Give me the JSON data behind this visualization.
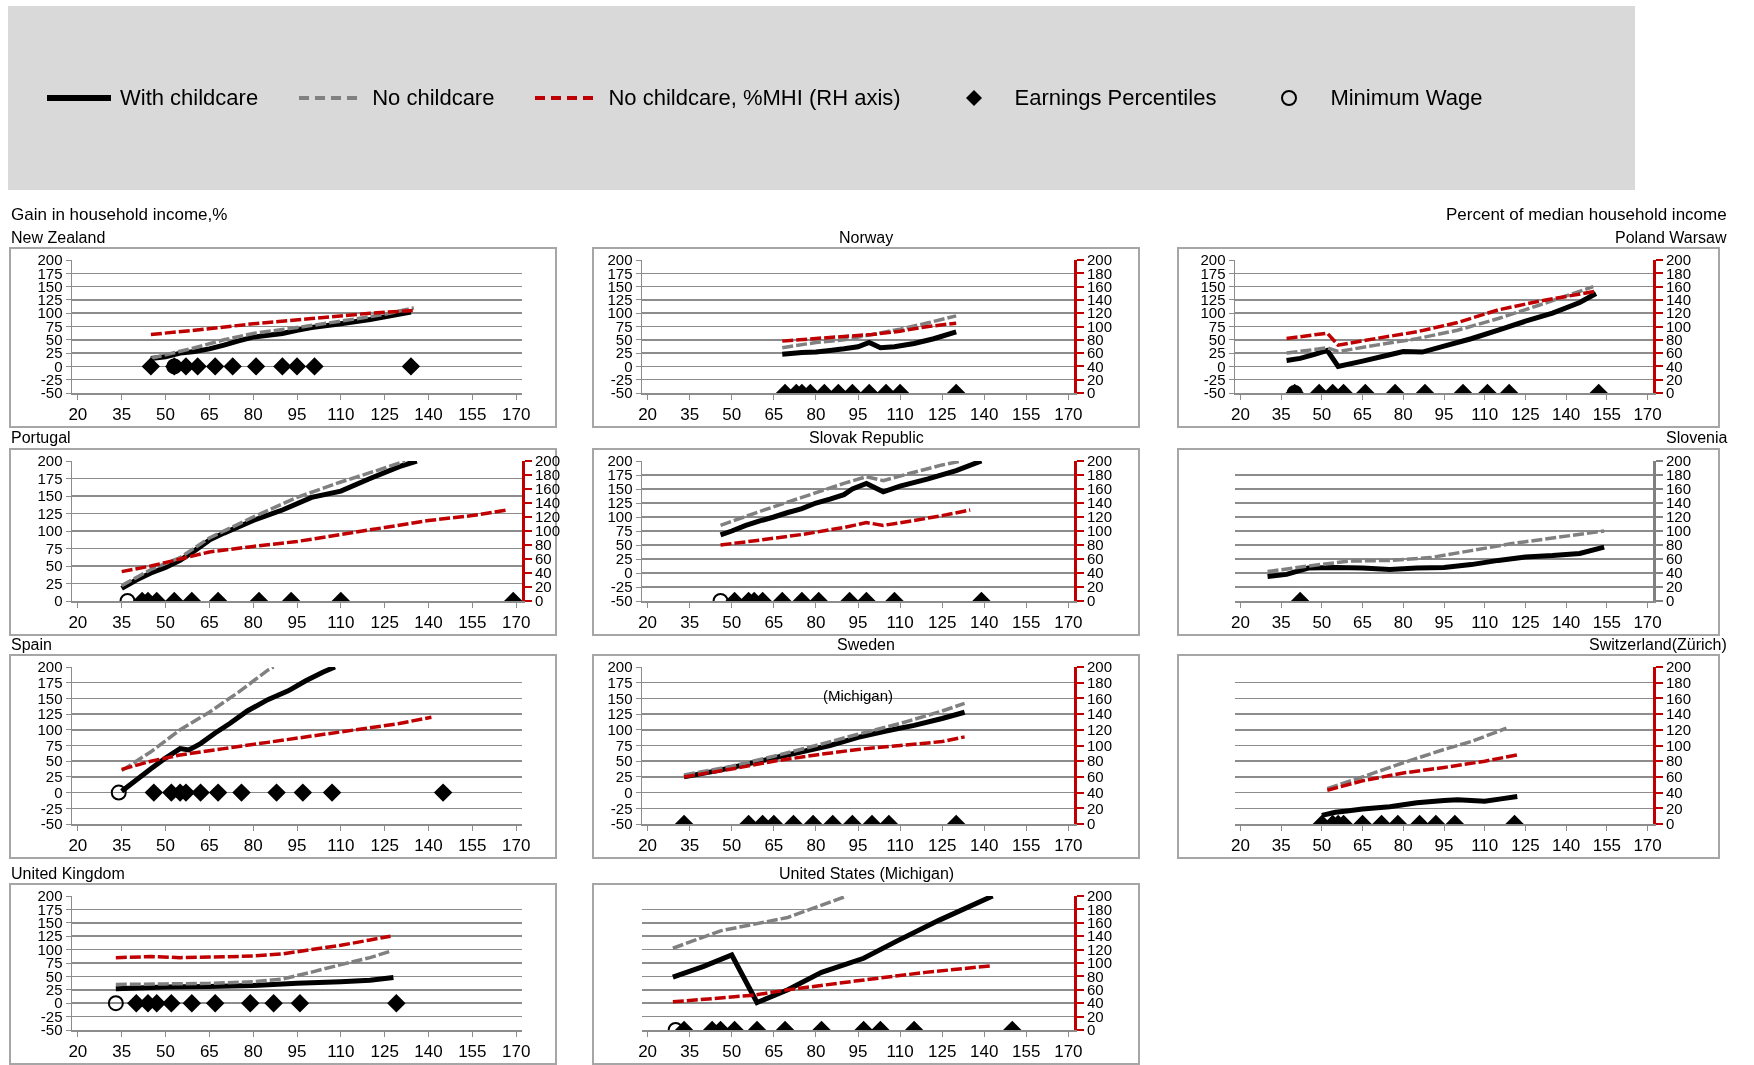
{
  "chart_data": [
    {
      "type": "line",
      "title": "New Zealand",
      "ylabel": "Gain in household income,%",
      "legend": "top",
      "grid": "y",
      "xlim": [
        18,
        172
      ],
      "xticks": [
        20,
        35,
        50,
        65,
        80,
        95,
        110,
        125,
        140,
        155,
        170
      ],
      "ylim": [
        -50,
        200
      ],
      "yticks": [
        -50,
        -25,
        0,
        25,
        50,
        75,
        100,
        125,
        150,
        175,
        200
      ],
      "series": [
        {
          "name": "With childcare",
          "color": "#000000",
          "line_style": "solid",
          "x": [
            45,
            50,
            55,
            60,
            65,
            70,
            75,
            80,
            90,
            95,
            100,
            110,
            120,
            134
          ],
          "values": [
            15,
            18,
            25,
            28,
            33,
            40,
            48,
            55,
            62,
            68,
            73,
            80,
            88,
            102
          ]
        },
        {
          "name": "No childcare",
          "color": "#808080",
          "line_style": "dashed",
          "x": [
            45,
            60,
            70,
            80,
            95,
            110,
            125,
            135
          ],
          "values": [
            15,
            35,
            50,
            62,
            73,
            85,
            98,
            110
          ]
        },
        {
          "name": "No childcare, %MHI (RH axis)",
          "color": "#c00000",
          "line_style": "dashed",
          "x": [
            45,
            60,
            80,
            100,
            120,
            135
          ],
          "values": [
            60,
            68,
            80,
            90,
            100,
            105
          ]
        },
        {
          "name": "Earnings Percentiles",
          "type": "scatter",
          "marker": "diamond",
          "color": "#000000",
          "x": [
            45,
            53,
            57,
            61,
            67,
            73,
            81,
            90,
            95,
            101,
            134
          ],
          "values": [
            0,
            0,
            0,
            0,
            0,
            0,
            0,
            0,
            0,
            0,
            0
          ]
        },
        {
          "name": "Minimum Wage",
          "type": "scatter",
          "marker": "circle",
          "color": "#000000",
          "x": [
            53
          ],
          "values": [
            0
          ]
        }
      ]
    },
    {
      "type": "line",
      "title": "Norway",
      "grid": "y",
      "xlim": [
        18,
        172
      ],
      "xticks": [
        20,
        35,
        50,
        65,
        80,
        95,
        110,
        125,
        140,
        155,
        170
      ],
      "ylim": [
        -50,
        200
      ],
      "yticks": [
        -50,
        -25,
        0,
        25,
        50,
        75,
        100,
        125,
        150,
        175,
        200
      ],
      "y2lim": [
        0,
        200
      ],
      "y2ticks": [
        0,
        20,
        40,
        60,
        80,
        100,
        120,
        140,
        160,
        180,
        200
      ],
      "series": [
        {
          "type": "line",
          "color": "#000000",
          "line_style": "solid",
          "x": [
            68,
            75,
            80,
            85,
            90,
            95,
            99,
            103,
            108,
            115,
            122,
            130
          ],
          "values": [
            23,
            26,
            27,
            30,
            33,
            37,
            45,
            35,
            37,
            43,
            52,
            65
          ]
        },
        {
          "type": "line",
          "color": "#808080",
          "line_style": "dashed",
          "x": [
            68,
            80,
            90,
            100,
            110,
            120,
            130
          ],
          "values": [
            35,
            45,
            50,
            60,
            70,
            82,
            95
          ]
        },
        {
          "type": "line",
          "axis": "y2",
          "color": "#c00000",
          "line_style": "dashed",
          "x": [
            68,
            80,
            90,
            100,
            110,
            120,
            130
          ],
          "values": [
            78,
            82,
            85,
            88,
            93,
            100,
            105
          ]
        },
        {
          "type": "scatter",
          "marker": "diamond",
          "color": "#000000",
          "x": [
            69,
            73,
            75,
            78,
            83,
            88,
            93,
            99,
            105,
            110,
            130
          ],
          "values": [
            -50,
            -50,
            -50,
            -50,
            -50,
            -50,
            -50,
            -50,
            -50,
            -50,
            -50
          ]
        }
      ]
    },
    {
      "type": "line",
      "title": "Poland Warsaw",
      "y2label": "Percent of median household income",
      "grid": "y",
      "xlim": [
        18,
        172
      ],
      "xticks": [
        20,
        35,
        50,
        65,
        80,
        95,
        110,
        125,
        140,
        155,
        170
      ],
      "ylim": [
        -50,
        200
      ],
      "yticks": [
        -50,
        -25,
        0,
        25,
        50,
        75,
        100,
        125,
        150,
        175,
        200
      ],
      "y2lim": [
        0,
        200
      ],
      "y2ticks": [
        0,
        20,
        40,
        60,
        80,
        100,
        120,
        140,
        160,
        180,
        200
      ],
      "series": [
        {
          "type": "line",
          "color": "#000000",
          "line_style": "solid",
          "x": [
            37,
            42,
            47,
            52,
            56,
            65,
            75,
            80,
            87,
            95,
            105,
            115,
            125,
            135,
            145,
            151
          ],
          "values": [
            11,
            15,
            22,
            30,
            0,
            10,
            22,
            28,
            27,
            38,
            52,
            68,
            85,
            100,
            120,
            137
          ]
        },
        {
          "type": "line",
          "color": "#808080",
          "line_style": "dashed",
          "x": [
            37,
            52,
            56,
            70,
            85,
            100,
            115,
            130,
            150
          ],
          "values": [
            25,
            35,
            28,
            40,
            52,
            68,
            90,
            115,
            150
          ]
        },
        {
          "type": "line",
          "axis": "y2",
          "color": "#c00000",
          "line_style": "dashed",
          "x": [
            37,
            52,
            56,
            70,
            85,
            100,
            115,
            130,
            151
          ],
          "values": [
            82,
            90,
            72,
            82,
            92,
            106,
            125,
            138,
            153
          ]
        },
        {
          "type": "scatter",
          "marker": "diamond",
          "color": "#000000",
          "x": [
            40,
            49,
            54,
            58,
            66,
            77,
            88,
            102,
            111,
            119,
            152
          ],
          "values": [
            -50,
            -50,
            -50,
            -50,
            -50,
            -50,
            -50,
            -50,
            -50,
            -50,
            -50
          ]
        },
        {
          "type": "scatter",
          "marker": "circle",
          "color": "#000000",
          "x": [
            40
          ],
          "values": [
            -50
          ]
        }
      ]
    },
    {
      "type": "line",
      "title": "Portugal",
      "grid": "y",
      "xlim": [
        18,
        172
      ],
      "xticks": [
        20,
        35,
        50,
        65,
        80,
        95,
        110,
        125,
        140,
        155,
        170
      ],
      "ylim": [
        0,
        200
      ],
      "yticks": [
        0,
        25,
        50,
        75,
        100,
        125,
        150,
        175,
        200
      ],
      "y2lim": [
        0,
        200
      ],
      "y2ticks": [
        0,
        20,
        40,
        60,
        80,
        100,
        120,
        140,
        160,
        180,
        200
      ],
      "series": [
        {
          "type": "line",
          "color": "#000000",
          "line_style": "solid",
          "x": [
            35,
            40,
            45,
            50,
            55,
            60,
            65,
            70,
            80,
            90,
            100,
            110,
            120,
            130,
            136
          ],
          "values": [
            18,
            30,
            40,
            48,
            58,
            72,
            87,
            97,
            115,
            130,
            148,
            157,
            175,
            192,
            200
          ]
        },
        {
          "type": "line",
          "color": "#808080",
          "line_style": "dashed",
          "x": [
            35,
            45,
            55,
            65,
            80,
            95,
            110,
            125,
            132
          ],
          "values": [
            22,
            45,
            62,
            90,
            120,
            148,
            170,
            190,
            200
          ]
        },
        {
          "type": "line",
          "axis": "y2",
          "color": "#c00000",
          "line_style": "dashed",
          "x": [
            35,
            45,
            55,
            65,
            80,
            95,
            110,
            125,
            140,
            155,
            167
          ],
          "values": [
            42,
            50,
            60,
            70,
            78,
            85,
            95,
            105,
            115,
            122,
            130
          ]
        },
        {
          "type": "scatter",
          "marker": "diamond",
          "color": "#000000",
          "x": [
            42,
            44,
            47,
            53,
            59,
            68,
            82,
            93,
            110,
            169
          ],
          "values": [
            0,
            0,
            0,
            0,
            0,
            0,
            0,
            0,
            0,
            0
          ]
        },
        {
          "type": "scatter",
          "marker": "circle",
          "color": "#000000",
          "x": [
            37
          ],
          "values": [
            0
          ]
        }
      ]
    },
    {
      "type": "line",
      "title": "Slovak Republic",
      "grid": "y",
      "xlim": [
        18,
        172
      ],
      "xticks": [
        20,
        35,
        50,
        65,
        80,
        95,
        110,
        125,
        140,
        155,
        170
      ],
      "ylim": [
        -50,
        200
      ],
      "yticks": [
        -50,
        -25,
        0,
        25,
        50,
        75,
        100,
        125,
        150,
        175,
        200
      ],
      "y2lim": [
        0,
        200
      ],
      "y2ticks": [
        0,
        20,
        40,
        60,
        80,
        100,
        120,
        140,
        160,
        180,
        200
      ],
      "series": [
        {
          "type": "line",
          "color": "#000000",
          "line_style": "solid",
          "x": [
            46,
            50,
            55,
            60,
            65,
            70,
            75,
            80,
            85,
            90,
            93,
            98,
            104,
            110,
            120,
            130,
            139
          ],
          "values": [
            68,
            75,
            85,
            93,
            100,
            108,
            115,
            125,
            132,
            140,
            150,
            160,
            145,
            155,
            168,
            183,
            200
          ]
        },
        {
          "type": "line",
          "color": "#808080",
          "line_style": "dashed",
          "x": [
            46,
            60,
            75,
            90,
            98,
            104,
            115,
            125,
            132
          ],
          "values": [
            85,
            110,
            135,
            160,
            172,
            165,
            180,
            193,
            200
          ]
        },
        {
          "type": "line",
          "axis": "y2",
          "color": "#c00000",
          "line_style": "dashed",
          "x": [
            46,
            60,
            75,
            90,
            98,
            104,
            115,
            125,
            135
          ],
          "values": [
            80,
            87,
            95,
            105,
            112,
            108,
            115,
            122,
            130
          ]
        },
        {
          "type": "scatter",
          "marker": "diamond",
          "color": "#000000",
          "x": [
            51,
            56,
            58,
            61,
            68,
            75,
            81,
            92,
            98,
            108,
            139
          ],
          "values": [
            -50,
            -50,
            -50,
            -50,
            -50,
            -50,
            -50,
            -50,
            -50,
            -50,
            -50
          ]
        },
        {
          "type": "scatter",
          "marker": "circle",
          "color": "#000000",
          "x": [
            46
          ],
          "values": [
            -50
          ]
        }
      ]
    },
    {
      "type": "line",
      "title": "Slovenia",
      "grid": "y",
      "tick_labels": [
        "x",
        "y2"
      ],
      "xlim": [
        18,
        172
      ],
      "xticks": [
        20,
        35,
        50,
        65,
        80,
        95,
        110,
        125,
        140,
        155,
        170
      ],
      "y2lim": [
        0,
        200
      ],
      "y2ticks": [
        0,
        20,
        40,
        60,
        80,
        100,
        120,
        140,
        160,
        180,
        200
      ],
      "series": [
        {
          "type": "line",
          "axis": "y2",
          "color": "#000000",
          "line_style": "solid",
          "x": [
            30,
            37,
            45,
            55,
            65,
            75,
            85,
            95,
            105,
            115,
            125,
            135,
            145,
            154
          ],
          "values": [
            35,
            38,
            47,
            48,
            47,
            45,
            47,
            48,
            52,
            58,
            63,
            65,
            68,
            77
          ]
        },
        {
          "type": "line",
          "axis": "y2",
          "color": "#808080",
          "line_style": "dashed",
          "x": [
            30,
            45,
            60,
            75,
            90,
            105,
            120,
            135,
            154
          ],
          "values": [
            42,
            50,
            57,
            58,
            62,
            72,
            82,
            90,
            100
          ]
        },
        {
          "type": "scatter",
          "axis": "y2",
          "marker": "diamond",
          "color": "#000000",
          "x": [
            42
          ],
          "values": [
            0
          ]
        }
      ]
    },
    {
      "type": "line",
      "title": "Spain",
      "grid": "y",
      "xlim": [
        18,
        172
      ],
      "xticks": [
        20,
        35,
        50,
        65,
        80,
        95,
        110,
        125,
        140,
        155,
        170
      ],
      "ylim": [
        -50,
        200
      ],
      "yticks": [
        -50,
        -25,
        0,
        25,
        50,
        75,
        100,
        125,
        150,
        175,
        200
      ],
      "series": [
        {
          "type": "line",
          "color": "#000000",
          "line_style": "solid",
          "x": [
            35,
            40,
            45,
            50,
            55,
            58,
            62,
            67,
            72,
            78,
            85,
            92,
            98,
            104,
            108
          ],
          "values": [
            2,
            20,
            38,
            55,
            70,
            68,
            78,
            95,
            110,
            130,
            148,
            162,
            178,
            192,
            200
          ]
        },
        {
          "type": "line",
          "color": "#808080",
          "line_style": "dashed",
          "x": [
            35,
            45,
            55,
            65,
            75,
            85,
            87
          ],
          "values": [
            35,
            65,
            100,
            128,
            160,
            195,
            200
          ]
        },
        {
          "type": "line",
          "color": "#c00000",
          "line_style": "dashed",
          "x": [
            35,
            45,
            55,
            70,
            85,
            100,
            115,
            130,
            141
          ],
          "values": [
            37,
            50,
            60,
            70,
            80,
            90,
            100,
            110,
            120
          ]
        },
        {
          "type": "scatter",
          "marker": "diamond",
          "color": "#000000",
          "x": [
            46,
            52,
            55,
            57,
            62,
            68,
            76,
            88,
            97,
            107,
            145
          ],
          "values": [
            0,
            0,
            0,
            0,
            0,
            0,
            0,
            0,
            0,
            0,
            0
          ]
        },
        {
          "type": "scatter",
          "marker": "circle",
          "color": "#000000",
          "x": [
            34
          ],
          "values": [
            0
          ]
        }
      ]
    },
    {
      "type": "line",
      "title": "Sweden",
      "annotations": [
        "(Michigan)"
      ],
      "grid": "y",
      "xlim": [
        18,
        172
      ],
      "xticks": [
        20,
        35,
        50,
        65,
        80,
        95,
        110,
        125,
        140,
        155,
        170
      ],
      "ylim": [
        -50,
        200
      ],
      "yticks": [
        -50,
        -25,
        0,
        25,
        50,
        75,
        100,
        125,
        150,
        175,
        200
      ],
      "y2lim": [
        0,
        200
      ],
      "y2ticks": [
        0,
        20,
        40,
        60,
        80,
        100,
        120,
        140,
        160,
        180,
        200
      ],
      "series": [
        {
          "type": "line",
          "color": "#000000",
          "line_style": "solid",
          "x": [
            33,
            45,
            55,
            65,
            75,
            85,
            95,
            105,
            115,
            125,
            133
          ],
          "values": [
            25,
            35,
            45,
            55,
            65,
            75,
            88,
            98,
            107,
            118,
            128
          ]
        },
        {
          "type": "line",
          "color": "#808080",
          "line_style": "dashed",
          "x": [
            33,
            50,
            65,
            80,
            95,
            110,
            125,
            133
          ],
          "values": [
            28,
            42,
            58,
            75,
            93,
            110,
            130,
            142
          ]
        },
        {
          "type": "line",
          "axis": "y2",
          "color": "#c00000",
          "line_style": "dashed",
          "x": [
            33,
            50,
            65,
            80,
            95,
            110,
            125,
            133
          ],
          "values": [
            60,
            70,
            80,
            88,
            95,
            100,
            105,
            111
          ]
        },
        {
          "type": "scatter",
          "marker": "diamond",
          "color": "#000000",
          "x": [
            33,
            56,
            61,
            65,
            72,
            79,
            86,
            93,
            100,
            106,
            130
          ],
          "values": [
            -50,
            -50,
            -50,
            -50,
            -50,
            -50,
            -50,
            -50,
            -50,
            -50,
            -50
          ]
        }
      ]
    },
    {
      "type": "line",
      "title": "Switzerland(Zürich)",
      "grid": "y",
      "tick_labels": [
        "x",
        "y2"
      ],
      "xlim": [
        18,
        172
      ],
      "xticks": [
        20,
        35,
        50,
        65,
        80,
        95,
        110,
        125,
        140,
        155,
        170
      ],
      "y2lim": [
        0,
        200
      ],
      "y2ticks": [
        0,
        20,
        40,
        60,
        80,
        100,
        120,
        140,
        160,
        180,
        200
      ],
      "series": [
        {
          "type": "line",
          "axis": "y2",
          "color": "#000000",
          "line_style": "solid",
          "x": [
            50,
            55,
            60,
            65,
            75,
            85,
            95,
            100,
            110,
            116,
            122
          ],
          "values": [
            11,
            15,
            17,
            19,
            22,
            27,
            30,
            31,
            29,
            32,
            35
          ]
        },
        {
          "type": "line",
          "axis": "y2",
          "color": "#808080",
          "line_style": "dashed",
          "x": [
            52,
            65,
            80,
            95,
            105,
            118
          ],
          "values": [
            45,
            60,
            78,
            95,
            105,
            122
          ]
        },
        {
          "type": "line",
          "axis": "y2",
          "color": "#c00000",
          "line_style": "dashed",
          "x": [
            52,
            65,
            80,
            95,
            110,
            122
          ],
          "values": [
            43,
            55,
            65,
            72,
            80,
            88
          ]
        },
        {
          "type": "scatter",
          "axis": "y2",
          "marker": "diamond",
          "color": "#000000",
          "x": [
            50,
            54,
            56,
            58,
            65,
            72,
            78,
            86,
            92,
            99,
            121
          ],
          "values": [
            0,
            0,
            0,
            0,
            0,
            0,
            0,
            0,
            0,
            0,
            0
          ]
        }
      ]
    },
    {
      "type": "line",
      "title": "United Kingdom",
      "grid": "y",
      "xlim": [
        18,
        172
      ],
      "xticks": [
        20,
        35,
        50,
        65,
        80,
        95,
        110,
        125,
        140,
        155,
        170
      ],
      "ylim": [
        -50,
        200
      ],
      "yticks": [
        -50,
        -25,
        0,
        25,
        50,
        75,
        100,
        125,
        150,
        175,
        200
      ],
      "series": [
        {
          "type": "line",
          "color": "#000000",
          "line_style": "solid",
          "x": [
            33,
            50,
            65,
            80,
            95,
            110,
            120,
            128
          ],
          "values": [
            27,
            30,
            31,
            33,
            37,
            40,
            43,
            48
          ]
        },
        {
          "type": "line",
          "color": "#808080",
          "line_style": "dashed",
          "x": [
            33,
            50,
            65,
            80,
            90,
            100,
            110,
            120,
            127
          ],
          "values": [
            35,
            36,
            37,
            40,
            45,
            58,
            72,
            85,
            97
          ]
        },
        {
          "type": "line",
          "color": "#c00000",
          "line_style": "dashed",
          "x": [
            33,
            45,
            55,
            65,
            80,
            90,
            100,
            110,
            120,
            127
          ],
          "values": [
            85,
            87,
            85,
            86,
            88,
            92,
            100,
            108,
            118,
            125
          ]
        },
        {
          "type": "scatter",
          "marker": "diamond",
          "color": "#000000",
          "x": [
            40,
            44,
            47,
            52,
            59,
            67,
            79,
            87,
            96,
            129
          ],
          "values": [
            0,
            0,
            0,
            0,
            0,
            0,
            0,
            0,
            0,
            0
          ]
        },
        {
          "type": "scatter",
          "marker": "circle",
          "color": "#000000",
          "x": [
            33
          ],
          "values": [
            0
          ]
        }
      ]
    },
    {
      "type": "line",
      "title": "United States (Michigan)",
      "grid": "y",
      "tick_labels": [
        "x",
        "y2"
      ],
      "xlim": [
        18,
        172
      ],
      "xticks": [
        20,
        35,
        50,
        65,
        80,
        95,
        110,
        125,
        140,
        155,
        170
      ],
      "y2lim": [
        0,
        200
      ],
      "y2ticks": [
        0,
        20,
        40,
        60,
        80,
        100,
        120,
        140,
        160,
        180,
        200
      ],
      "series": [
        {
          "type": "line",
          "axis": "y2",
          "color": "#000000",
          "line_style": "solid",
          "x": [
            29,
            40,
            50,
            59,
            70,
            82,
            97,
            109,
            124,
            143
          ],
          "values": [
            79,
            95,
            112,
            41,
            60,
            86,
            107,
            133,
            164,
            200
          ]
        },
        {
          "type": "line",
          "axis": "y2",
          "color": "#808080",
          "line_style": "dashed",
          "x": [
            29,
            46,
            70,
            91
          ],
          "values": [
            122,
            148,
            168,
            200
          ]
        },
        {
          "type": "line",
          "axis": "y2",
          "color": "#c00000",
          "line_style": "dashed",
          "x": [
            29,
            58,
            70,
            94,
            119,
            143
          ],
          "values": [
            42,
            52,
            60,
            73,
            86,
            96
          ]
        },
        {
          "type": "scatter",
          "axis": "y2",
          "marker": "diamond",
          "color": "#000000",
          "x": [
            33,
            43,
            46,
            51,
            59,
            69,
            82,
            97,
            103,
            115,
            150
          ],
          "values": [
            0,
            0,
            0,
            0,
            0,
            0,
            0,
            0,
            0,
            0,
            0
          ]
        },
        {
          "type": "scatter",
          "axis": "y2",
          "marker": "circle",
          "color": "#000000",
          "x": [
            30
          ],
          "values": [
            0
          ]
        }
      ]
    }
  ]
}
